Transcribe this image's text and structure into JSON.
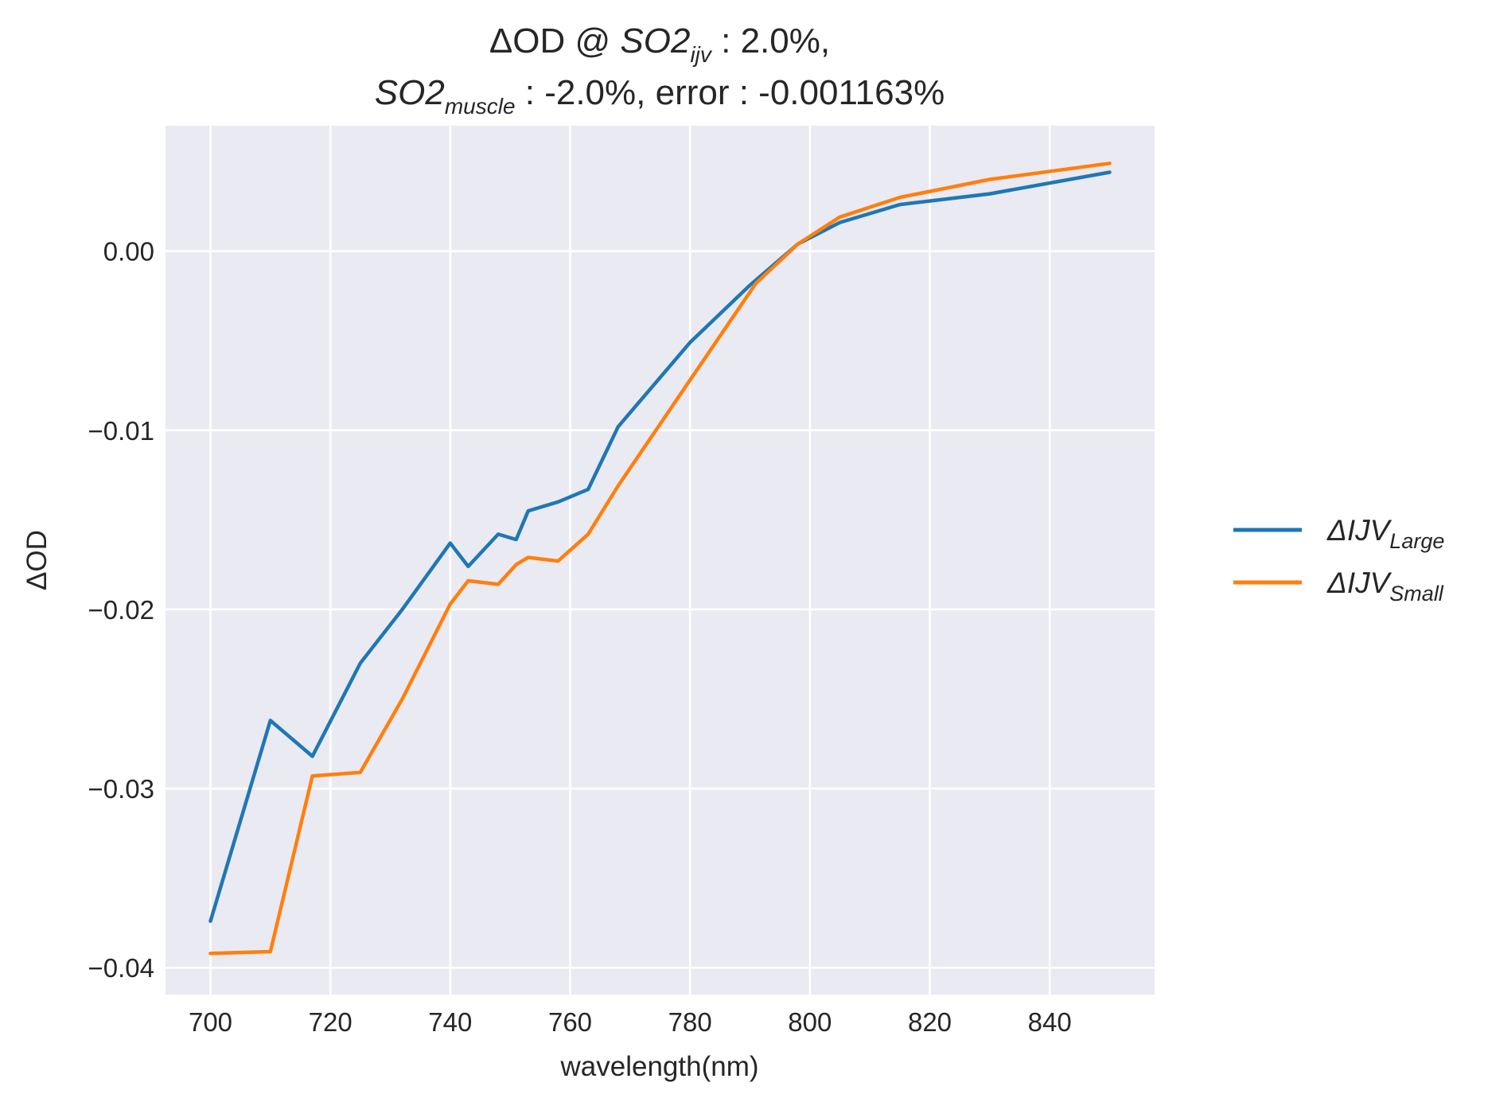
{
  "chart_data": {
    "type": "line",
    "title_line1": {
      "prefix": "ΔOD @ ",
      "var": "SO2",
      "sub": "ijv",
      "suffix": " : 2.0%,"
    },
    "title_line2": {
      "var": "SO2",
      "sub": "muscle",
      "suffix": " : -2.0%, error : -0.001163%"
    },
    "xlabel": "wavelength(nm)",
    "ylabel": "ΔOD",
    "xlim": [
      692.5,
      857.5
    ],
    "ylim": [
      -0.0415,
      0.007
    ],
    "xticks": [
      700,
      720,
      740,
      760,
      780,
      800,
      820,
      840
    ],
    "xtick_labels": [
      "700",
      "720",
      "740",
      "760",
      "780",
      "800",
      "820",
      "840"
    ],
    "yticks": [
      0.0,
      -0.01,
      -0.02,
      -0.03,
      -0.04
    ],
    "ytick_labels": [
      "0.00",
      "−0.01",
      "−0.02",
      "−0.03",
      "−0.04"
    ],
    "grid": true,
    "legend_position": "outside-right",
    "background": "#eaeaf2",
    "series": [
      {
        "name_main": "ΔIJV",
        "name_sub": "Large",
        "color": "#1f77b4",
        "x": [
          700,
          710,
          717,
          725,
          732,
          740,
          743,
          748,
          751,
          753,
          758,
          763,
          768,
          780,
          790,
          798,
          805,
          815,
          830,
          850
        ],
        "y": [
          -0.0374,
          -0.0262,
          -0.0282,
          -0.023,
          -0.02,
          -0.0163,
          -0.0176,
          -0.0158,
          -0.0161,
          -0.0145,
          -0.014,
          -0.0133,
          -0.0098,
          -0.0051,
          -0.0019,
          0.0004,
          0.0016,
          0.0026,
          0.0032,
          0.0044
        ]
      },
      {
        "name_main": "ΔIJV",
        "name_sub": "Small",
        "color": "#ff7f0e",
        "x": [
          700,
          710,
          717,
          725,
          732,
          740,
          743,
          748,
          751,
          753,
          758,
          763,
          768,
          780,
          791,
          798,
          805,
          815,
          830,
          850
        ],
        "y": [
          -0.0392,
          -0.0391,
          -0.0293,
          -0.0291,
          -0.025,
          -0.0197,
          -0.0184,
          -0.0186,
          -0.0175,
          -0.0171,
          -0.0173,
          -0.0158,
          -0.0131,
          -0.0072,
          -0.0018,
          0.0004,
          0.0019,
          0.003,
          0.004,
          0.0049
        ]
      }
    ]
  }
}
